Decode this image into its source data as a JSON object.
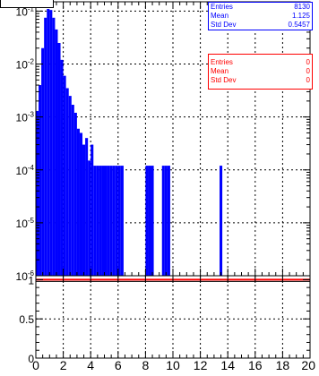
{
  "chart_data": [
    {
      "type": "bar",
      "title": "",
      "xlabel": "",
      "ylabel": "",
      "log_y": true,
      "xlim": [
        0,
        20
      ],
      "ylim": [
        1e-06,
        0.15
      ],
      "grid": true,
      "y_tick_labels": [
        "10^{-6}",
        "10^{-5}",
        "10^{-4}",
        "10^{-3}",
        "10^{-2}",
        "10^{-1}"
      ],
      "bin_width": 0.2,
      "series": [
        {
          "color": "#0000ff",
          "x": [
            0.1,
            0.3,
            0.5,
            0.7,
            0.9,
            1.1,
            1.3,
            1.5,
            1.7,
            1.9,
            2.1,
            2.3,
            2.5,
            2.7,
            2.9,
            3.1,
            3.3,
            3.5,
            3.7,
            3.9,
            4.1,
            4.3,
            4.5,
            4.7,
            4.9,
            5.1,
            5.3,
            5.5,
            5.7,
            5.9,
            6.1,
            6.3,
            8.1,
            8.3,
            8.5,
            9.3,
            9.5,
            9.7,
            13.5
          ],
          "values": [
            0.0013,
            0.004,
            0.02,
            0.075,
            0.11,
            0.105,
            0.075,
            0.045,
            0.025,
            0.012,
            0.006,
            0.0035,
            0.0025,
            0.0017,
            0.0012,
            0.0006,
            0.0005,
            0.0003,
            0.0004,
            0.00015,
            0.0003,
            0.00012,
            0.00012,
            0.00012,
            0.00012,
            0.00012,
            0.00012,
            0.00012,
            0.00012,
            0.00012,
            0.00012,
            0.00012,
            0.00012,
            0.00012,
            0.00012,
            0.00012,
            0.00012,
            0.00012,
            0.00012
          ]
        }
      ],
      "stats": {
        "entries_label": "Entries",
        "entries": "8130",
        "mean_label": "Mean",
        "mean": "1.125",
        "std_label": "Std Dev",
        "std": "0.5457"
      }
    },
    {
      "type": "line",
      "title": "",
      "xlabel": "",
      "ylabel": "",
      "xlim": [
        0,
        20
      ],
      "ylim": [
        0,
        1.05
      ],
      "grid": true,
      "x_tick_labels": [
        "0",
        "2",
        "4",
        "6",
        "8",
        "10",
        "12",
        "14",
        "16",
        "18",
        "20"
      ],
      "y_tick_labels": [
        "0",
        "0.5",
        "1"
      ],
      "series": [
        {
          "color": "#ff0000",
          "x": [
            0,
            20
          ],
          "values": [
            1,
            1
          ]
        }
      ],
      "stats": {
        "entries_label": "Entries",
        "entries": "0",
        "mean_label": "Mean",
        "mean": "0",
        "std_label": "Std Dev",
        "std": "0"
      }
    }
  ]
}
